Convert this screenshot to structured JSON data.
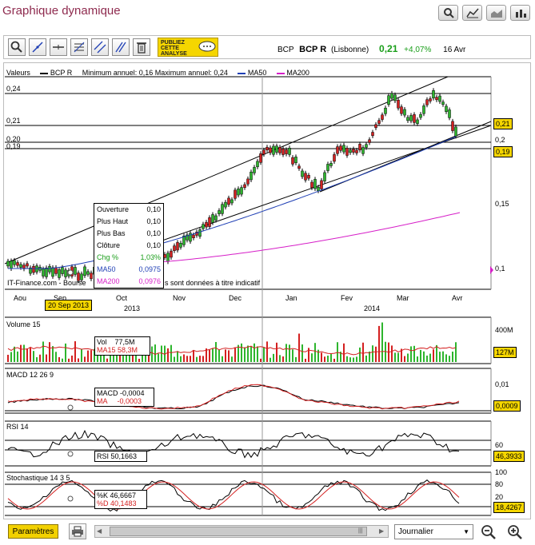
{
  "header": {
    "title": "Graphique dynamique"
  },
  "toolbar": {
    "publiez_lines": [
      "PUBLIEZ",
      "CETTE",
      "ANALYSE"
    ]
  },
  "stock": {
    "exchange": "BCP",
    "symbol": "BCP R",
    "market": "(Lisbonne)",
    "price": "0,21",
    "change": "+4,07%",
    "date": "16 Avr"
  },
  "main_chart": {
    "legend_values": "Valeurs",
    "legend_symbol": "BCP R",
    "legend_minmax": "Minimum annuel: 0,16  Maximum annuel: 0,24",
    "legend_ma50": "MA50",
    "legend_ma200": "MA200",
    "left_levels": [
      "0,24",
      "0,21",
      "0,20",
      "0,19"
    ],
    "y_ticks": [
      "0,2",
      "0,15",
      "0,1"
    ],
    "price_badge": "0,21",
    "level_badge": "0,19",
    "source": "IT-Finance.com - Bourse",
    "source_tail": "s sont données à titre indicatif",
    "x_months": [
      "Aou",
      "Sep",
      "Oct",
      "Nov",
      "Dec",
      "Jan",
      "Fev",
      "Mar",
      "Avr"
    ],
    "x_years": [
      "2013",
      "2014"
    ],
    "cursor_date": "20 Sep 2013"
  },
  "tooltip": {
    "rows": [
      {
        "label": "Ouverture",
        "value": "0,10"
      },
      {
        "label": "Plus Haut",
        "value": "0,10"
      },
      {
        "label": "Plus Bas",
        "value": "0,10"
      },
      {
        "label": "Clôture",
        "value": "0,10"
      },
      {
        "label": "Chg %",
        "value": "1,03%"
      },
      {
        "label": "MA50",
        "value": "0,0975"
      },
      {
        "label": "MA200",
        "value": "0,0976"
      }
    ]
  },
  "volume": {
    "title": "Volume 15",
    "vol_label": "Vol",
    "vol_value": "77,5M",
    "ma_label": "MA15",
    "ma_value": "58,3M",
    "tick": "400M",
    "badge": "127M"
  },
  "macd": {
    "title": "MACD 12 26 9",
    "macd_label": "MACD",
    "macd_value": "-0,0004",
    "ma_label": "MA",
    "ma_value": "-0,0003",
    "tick": "0,01",
    "badge": "0,0009"
  },
  "rsi": {
    "title": "RSI 14",
    "label": "RSI",
    "value": "50,1663",
    "tick": "60",
    "badge": "46,3933"
  },
  "stoch": {
    "title": "Stochastique 14 3 5",
    "k_label": "%K",
    "k_value": "46,6667",
    "d_label": "%D",
    "d_value": "40,1483",
    "ticks": [
      "100",
      "80",
      "20"
    ],
    "badge": "18,4267"
  },
  "bottom": {
    "params_label": "Paramètres",
    "period_value": "Journalier"
  },
  "colors": {
    "title": "#8e2a4e",
    "up": "#2db52d",
    "down": "#d42020",
    "ma50": "#1f3fb5",
    "ma200": "#d61fc8",
    "badge_yellow": "#f5d600"
  }
}
